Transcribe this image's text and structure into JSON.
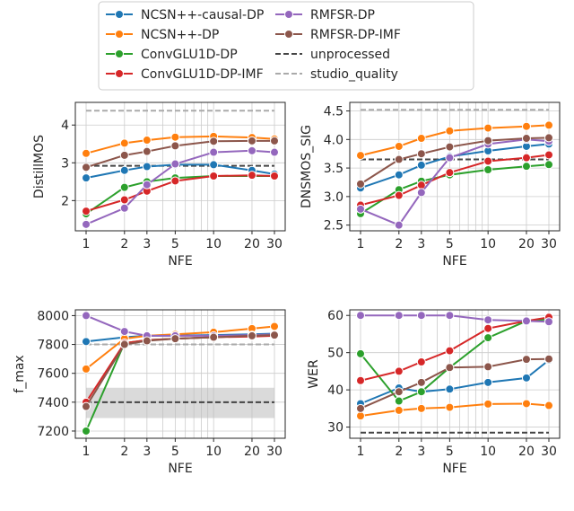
{
  "legend": {
    "entries": [
      {
        "name": "NCSN++-causal-DP",
        "color": "#1f77b4",
        "style": "solid-marker"
      },
      {
        "name": "NCSN++-DP",
        "color": "#ff7f0e",
        "style": "solid-marker"
      },
      {
        "name": "ConvGLU1D-DP",
        "color": "#2ca02c",
        "style": "solid-marker"
      },
      {
        "name": "ConvGLU1D-DP-IMF",
        "color": "#d62728",
        "style": "solid-marker"
      },
      {
        "name": "RMFSR-DP",
        "color": "#9467bd",
        "style": "solid-marker"
      },
      {
        "name": "RMFSR-DP-IMF",
        "color": "#8c564b",
        "style": "solid-marker"
      },
      {
        "name": "unprocessed",
        "color": "#444444",
        "style": "dashed"
      },
      {
        "name": "studio_quality",
        "color": "#aaaaaa",
        "style": "dashed"
      }
    ]
  },
  "chart_data": [
    {
      "type": "line",
      "xlabel": "NFE",
      "ylabel": "DistillMOS",
      "xscale": "log",
      "x": [
        1,
        2,
        3,
        5,
        10,
        20,
        30
      ],
      "xticks": [
        "1",
        "2",
        "3",
        "5",
        "10",
        "20",
        "30"
      ],
      "ylim": [
        1.2,
        4.6
      ],
      "yticks": [
        2,
        3,
        4
      ],
      "grid": true,
      "series": [
        {
          "name": "NCSN++-causal-DP",
          "values": [
            2.6,
            2.8,
            2.9,
            2.95,
            2.95,
            2.8,
            2.7
          ]
        },
        {
          "name": "NCSN++-DP",
          "values": [
            3.25,
            3.52,
            3.6,
            3.68,
            3.7,
            3.67,
            3.63
          ]
        },
        {
          "name": "ConvGLU1D-DP",
          "values": [
            1.65,
            2.35,
            2.5,
            2.6,
            2.65,
            2.65,
            2.65
          ]
        },
        {
          "name": "ConvGLU1D-DP-IMF",
          "values": [
            1.72,
            2.02,
            2.25,
            2.52,
            2.65,
            2.67,
            2.65
          ]
        },
        {
          "name": "RMFSR-DP",
          "values": [
            1.37,
            1.8,
            2.42,
            2.97,
            3.28,
            3.32,
            3.28
          ]
        },
        {
          "name": "RMFSR-DP-IMF",
          "values": [
            2.88,
            3.2,
            3.3,
            3.45,
            3.57,
            3.58,
            3.58
          ]
        }
      ],
      "reference_lines": {
        "unprocessed": 2.92,
        "studio_quality": 4.38
      }
    },
    {
      "type": "line",
      "xlabel": "NFE",
      "ylabel": "DNSMOS_SIG",
      "xscale": "log",
      "x": [
        1,
        2,
        3,
        5,
        10,
        20,
        30
      ],
      "xticks": [
        "1",
        "2",
        "3",
        "5",
        "10",
        "20",
        "30"
      ],
      "ylim": [
        2.4,
        4.65
      ],
      "yticks": [
        2.5,
        3.0,
        3.5,
        4.0,
        4.5
      ],
      "grid": true,
      "series": [
        {
          "name": "NCSN++-causal-DP",
          "values": [
            3.15,
            3.38,
            3.55,
            3.7,
            3.8,
            3.88,
            3.92
          ]
        },
        {
          "name": "NCSN++-DP",
          "values": [
            3.72,
            3.88,
            4.02,
            4.15,
            4.2,
            4.23,
            4.25
          ]
        },
        {
          "name": "ConvGLU1D-DP",
          "values": [
            2.7,
            3.12,
            3.27,
            3.38,
            3.47,
            3.53,
            3.56
          ]
        },
        {
          "name": "ConvGLU1D-DP-IMF",
          "values": [
            2.85,
            3.02,
            3.2,
            3.42,
            3.62,
            3.68,
            3.73
          ]
        },
        {
          "name": "RMFSR-DP",
          "values": [
            2.78,
            2.5,
            3.07,
            3.68,
            3.92,
            4.0,
            3.97
          ]
        },
        {
          "name": "RMFSR-DP-IMF",
          "values": [
            3.22,
            3.65,
            3.75,
            3.87,
            3.98,
            4.02,
            4.03
          ]
        }
      ],
      "reference_lines": {
        "unprocessed": 3.65,
        "studio_quality": 4.52
      }
    },
    {
      "type": "line",
      "xlabel": "NFE",
      "ylabel": "f_max",
      "xscale": "log",
      "x": [
        1,
        2,
        3,
        5,
        10,
        20,
        30
      ],
      "xticks": [
        "1",
        "2",
        "3",
        "5",
        "10",
        "20",
        "30"
      ],
      "ylim": [
        7150,
        8040
      ],
      "yticks": [
        7200,
        7400,
        7600,
        7800,
        8000
      ],
      "grid": true,
      "series": [
        {
          "name": "NCSN++-causal-DP",
          "values": [
            7820,
            7850,
            7860,
            7862,
            7865,
            7870,
            7875
          ]
        },
        {
          "name": "NCSN++-DP",
          "values": [
            7630,
            7840,
            7860,
            7870,
            7885,
            7910,
            7925
          ]
        },
        {
          "name": "ConvGLU1D-DP",
          "values": [
            7200,
            7810,
            7830,
            7840,
            7850,
            7860,
            7865
          ]
        },
        {
          "name": "ConvGLU1D-DP-IMF",
          "values": [
            7400,
            7810,
            7830,
            7840,
            7850,
            7855,
            7860
          ]
        },
        {
          "name": "RMFSR-DP",
          "values": [
            8000,
            7890,
            7860,
            7860,
            7860,
            7865,
            7870
          ]
        },
        {
          "name": "RMFSR-DP-IMF",
          "values": [
            7370,
            7800,
            7825,
            7840,
            7850,
            7860,
            7865
          ]
        }
      ],
      "reference_lines": {
        "unprocessed": 7400,
        "studio_quality": 7800
      },
      "unprocessed_band": [
        7290,
        7500
      ]
    },
    {
      "type": "line",
      "xlabel": "NFE",
      "ylabel": "WER",
      "xscale": "log",
      "x": [
        1,
        2,
        3,
        5,
        10,
        20,
        30
      ],
      "xticks": [
        "1",
        "2",
        "3",
        "5",
        "10",
        "20",
        "30"
      ],
      "ylim": [
        27,
        61.5
      ],
      "yticks": [
        30,
        40,
        50,
        60
      ],
      "grid": true,
      "series": [
        {
          "name": "NCSN++-causal-DP",
          "values": [
            36.3,
            40.5,
            39.5,
            40.2,
            42.0,
            43.2,
            48.0
          ]
        },
        {
          "name": "NCSN++-DP",
          "values": [
            33.0,
            34.5,
            35.0,
            35.3,
            36.2,
            36.3,
            35.8
          ]
        },
        {
          "name": "ConvGLU1D-DP",
          "values": [
            49.7,
            37.0,
            39.5,
            46.0,
            54.0,
            58.5,
            59.0
          ]
        },
        {
          "name": "ConvGLU1D-DP-IMF",
          "values": [
            42.5,
            45.0,
            47.5,
            50.5,
            56.5,
            58.5,
            59.5
          ]
        },
        {
          "name": "RMFSR-DP",
          "values": [
            60.0,
            60.0,
            60.0,
            60.0,
            58.8,
            58.5,
            58.3
          ]
        },
        {
          "name": "RMFSR-DP-IMF",
          "values": [
            35.0,
            39.5,
            42.0,
            46.0,
            46.2,
            48.2,
            48.3
          ]
        }
      ],
      "reference_lines": {
        "unprocessed": 28.5
      }
    }
  ]
}
